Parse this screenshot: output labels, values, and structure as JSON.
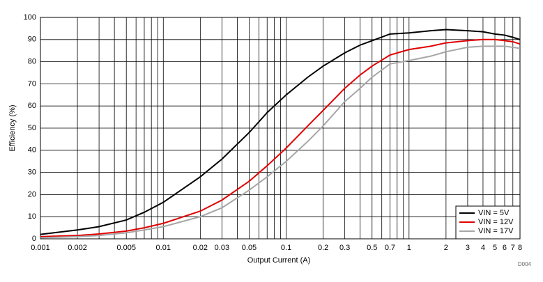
{
  "chart_data": {
    "type": "line",
    "xlabel": "Output Current (A)",
    "ylabel": "Efficiency (%)",
    "annotation": "D004",
    "xscale": "log",
    "grid": true,
    "legend": "lower right",
    "xlim": [
      0.001,
      8
    ],
    "ylim": [
      0,
      100
    ],
    "xticks": [
      0.001,
      0.002,
      0.005,
      0.01,
      0.02,
      0.03,
      0.05,
      0.1,
      0.2,
      0.3,
      0.5,
      0.7,
      1,
      2,
      3,
      4,
      5,
      6,
      7,
      8
    ],
    "xminor": [
      0.003,
      0.004,
      0.006,
      0.007,
      0.008,
      0.009,
      0.04,
      0.06,
      0.07,
      0.08,
      0.09,
      0.4,
      0.6,
      0.8,
      0.9
    ],
    "yticks": [
      0,
      10,
      20,
      30,
      40,
      50,
      60,
      70,
      80,
      90,
      100
    ],
    "x": [
      0.001,
      0.002,
      0.003,
      0.005,
      0.007,
      0.01,
      0.02,
      0.03,
      0.05,
      0.07,
      0.1,
      0.15,
      0.2,
      0.3,
      0.4,
      0.5,
      0.7,
      1,
      1.5,
      2,
      3,
      4,
      5,
      6,
      7,
      8
    ],
    "series": [
      {
        "name": "VIN = 5V",
        "color": "#000000",
        "values": [
          2,
          4,
          5.5,
          8.5,
          12,
          16.5,
          28,
          36,
          48,
          57,
          65,
          73,
          78,
          84,
          87.5,
          89.5,
          92.5,
          93,
          94,
          94.5,
          94,
          93.5,
          92.5,
          92,
          91,
          90
        ]
      },
      {
        "name": "VIN = 12V",
        "color": "#e00000",
        "values": [
          1,
          1.5,
          2.2,
          3.5,
          5,
          7,
          12.5,
          17.5,
          26,
          33,
          41,
          51,
          58,
          68,
          74,
          78,
          83,
          85.5,
          87,
          88.5,
          89.5,
          90,
          90,
          89.5,
          89,
          88
        ]
      },
      {
        "name": "VIN = 17V",
        "color": "#a6a6a6",
        "values": [
          0.5,
          1,
          1.5,
          2.7,
          4,
          5.5,
          10,
          14,
          22,
          28,
          35,
          44,
          51,
          62,
          68,
          73,
          79,
          80.5,
          82.5,
          84.5,
          86.5,
          87,
          87,
          87,
          86.5,
          86
        ]
      }
    ]
  }
}
